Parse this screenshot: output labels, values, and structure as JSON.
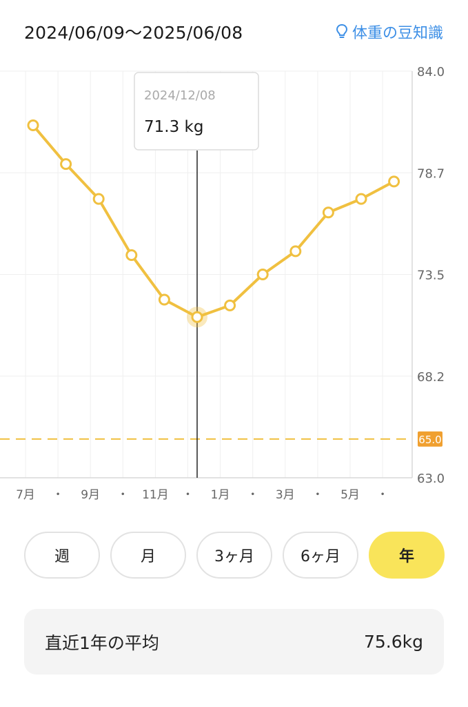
{
  "header": {
    "date_range": "2024/06/09～2025/06/08",
    "tips_label": "体重の豆知識",
    "tips_icon": "lightbulb-icon"
  },
  "colors": {
    "line": "#f0c040",
    "goal_line": "#f0c040",
    "goal_badge": "#f0a030",
    "tab_active": "#f9e45a",
    "link": "#3d8fe6"
  },
  "chart_data": {
    "type": "line",
    "y_ticks": [
      "84.0",
      "78.7",
      "73.5",
      "68.2",
      "63.0"
    ],
    "ylim": [
      63.0,
      84.0
    ],
    "x_tick_labels": [
      "7月",
      "・",
      "9月",
      "・",
      "11月",
      "・",
      "1月",
      "・",
      "3月",
      "・",
      "5月",
      "・"
    ],
    "series": [
      {
        "values": [
          81.2,
          79.2,
          77.4,
          74.5,
          72.2,
          71.3,
          71.9,
          73.5,
          74.7,
          76.7,
          77.4,
          78.3
        ]
      }
    ],
    "goal": {
      "value": 65.0,
      "label": "65.0"
    },
    "selected_index": 5,
    "tooltip": {
      "date": "2024/12/08",
      "value": "71.3 kg"
    }
  },
  "range_tabs": [
    {
      "label": "週",
      "active": false
    },
    {
      "label": "月",
      "active": false
    },
    {
      "label": "3ヶ月",
      "active": false
    },
    {
      "label": "6ヶ月",
      "active": false
    },
    {
      "label": "年",
      "active": true
    }
  ],
  "summary": {
    "label": "直近1年の平均",
    "value": "75.6kg"
  }
}
